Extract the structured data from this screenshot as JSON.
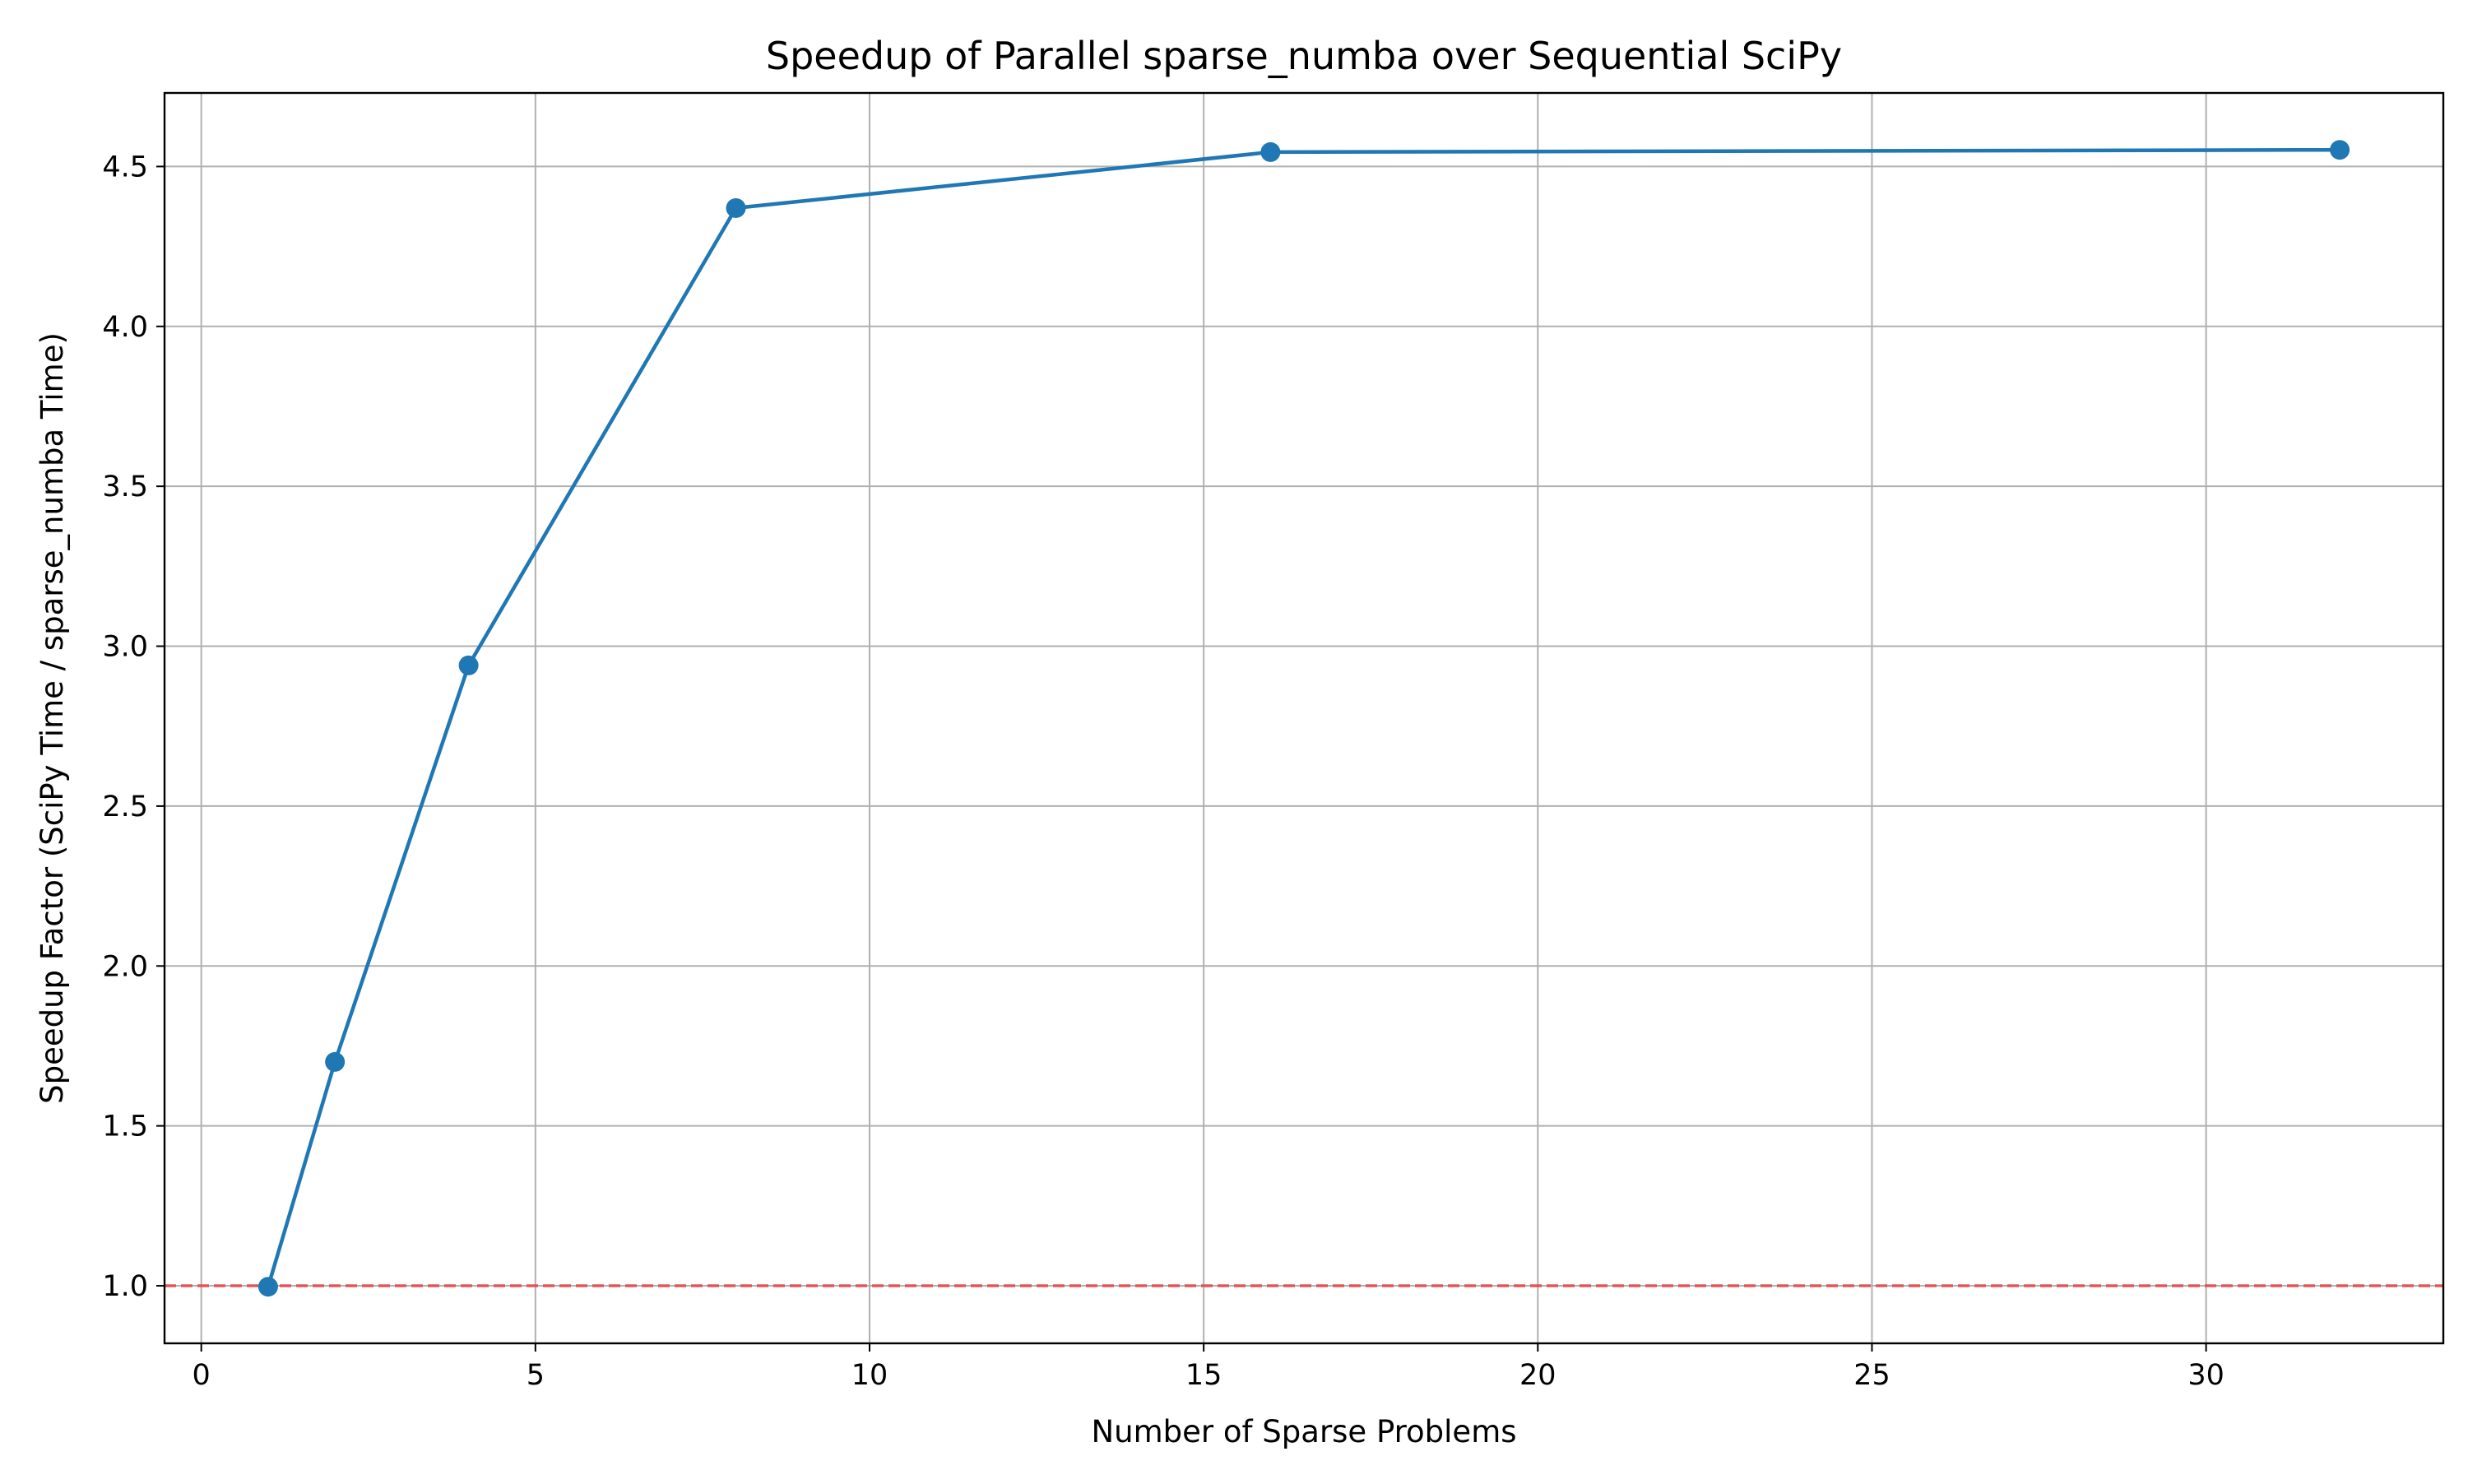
{
  "chart_data": {
    "type": "line",
    "title": "Speedup of Parallel sparse_numba over Sequential SciPy",
    "xlabel": "Number of Sparse Problems",
    "ylabel": "Speedup Factor (SciPy Time / sparse_numba Time)",
    "xlim": [
      -0.55,
      33.55
    ],
    "ylim": [
      0.82,
      4.73
    ],
    "x_ticks": [
      0,
      5,
      10,
      15,
      20,
      25,
      30
    ],
    "x_tick_labels": [
      "0",
      "5",
      "10",
      "15",
      "20",
      "25",
      "30"
    ],
    "y_ticks": [
      1.0,
      1.5,
      2.0,
      2.5,
      3.0,
      3.5,
      4.0,
      4.5
    ],
    "y_tick_labels": [
      "1.0",
      "1.5",
      "2.0",
      "2.5",
      "3.0",
      "3.5",
      "4.0",
      "4.5"
    ],
    "grid": true,
    "legend": "none",
    "series": [
      {
        "x": [
          1,
          2,
          4,
          8,
          16,
          32
        ],
        "values": [
          0.997,
          1.7,
          2.94,
          4.37,
          4.545,
          4.552
        ],
        "color": "#1f77b4",
        "marker": "circle"
      }
    ],
    "reference_line": {
      "y": 1.0,
      "style": "dashed",
      "color": "#e84a4a"
    }
  }
}
